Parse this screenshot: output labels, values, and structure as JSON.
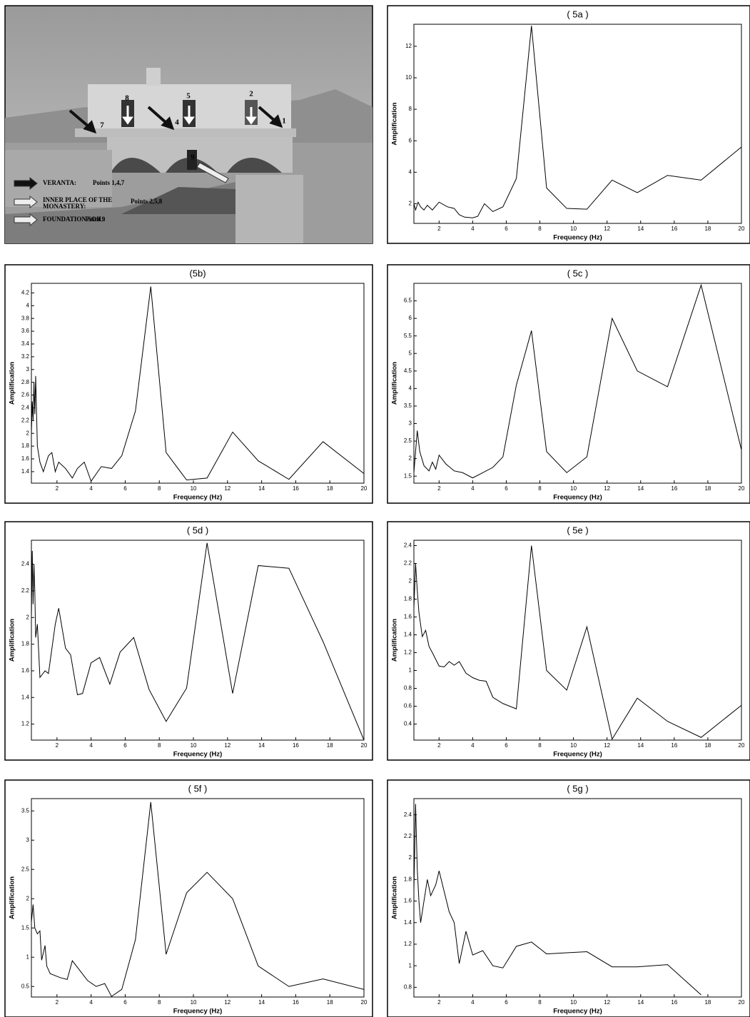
{
  "photo": {
    "point_labels": [
      "8",
      "5",
      "2",
      "7",
      "4",
      "1",
      "9"
    ],
    "legend": [
      {
        "lines": [
          "VERANTA:"
        ],
        "points": "Points 1,4,7"
      },
      {
        "lines": [
          "INNER PLACE OF THE",
          "MONASTERY:"
        ],
        "points": "Points 2,5,8"
      },
      {
        "lines": [
          "FOUNDATION SOIL:"
        ],
        "points": "Point 9"
      }
    ]
  },
  "chart_data": [
    {
      "type": "line",
      "title": "( 5a )",
      "x_label": "Frequency (Hz)",
      "y_label": "Amplification",
      "color": "#000000",
      "xlim": [
        0.5,
        20
      ],
      "ylim": [
        0.75,
        13.4
      ],
      "xticks": [
        2,
        4,
        6,
        8,
        10,
        12,
        14,
        16,
        18,
        20
      ],
      "yticks": [
        2,
        4,
        6,
        8,
        10,
        12
      ],
      "x": [
        0.5,
        0.6,
        0.75,
        0.9,
        1.1,
        1.3,
        1.6,
        2.0,
        2.5,
        2.9,
        3.2,
        3.5,
        4.0,
        4.3,
        4.7,
        5.2,
        5.8,
        6.6,
        7.5,
        8.4,
        9.6,
        10.8,
        12.3,
        13.8,
        15.6,
        17.6,
        20
      ],
      "values": [
        2.0,
        1.6,
        2.1,
        1.8,
        1.6,
        1.9,
        1.6,
        2.1,
        1.8,
        1.7,
        1.3,
        1.15,
        1.1,
        1.2,
        2.0,
        1.5,
        1.8,
        3.6,
        13.3,
        3.0,
        1.7,
        1.65,
        3.5,
        2.7,
        3.8,
        3.5,
        5.6
      ]
    },
    {
      "type": "line",
      "title": "(5b)",
      "x_label": "Frequency (Hz)",
      "y_label": "Amplification",
      "color": "#000000",
      "xlim": [
        0.5,
        20
      ],
      "ylim": [
        1.22,
        4.35
      ],
      "xticks": [
        2,
        4,
        6,
        8,
        10,
        12,
        14,
        16,
        18,
        20
      ],
      "yticks": [
        1.4,
        1.6,
        1.8,
        2,
        2.2,
        2.4,
        2.6,
        2.8,
        3,
        3.2,
        3.4,
        3.6,
        3.8,
        4,
        4.2
      ],
      "x": [
        0.5,
        0.55,
        0.6,
        0.65,
        0.7,
        0.75,
        0.85,
        1.0,
        1.2,
        1.5,
        1.7,
        1.9,
        2.1,
        2.5,
        2.9,
        3.2,
        3.6,
        4.0,
        4.6,
        5.2,
        5.8,
        6.6,
        7.5,
        8.4,
        9.6,
        10.8,
        12.3,
        13.8,
        15.6,
        17.6,
        20
      ],
      "values": [
        2.0,
        2.5,
        2.2,
        2.8,
        2.3,
        2.9,
        1.8,
        1.55,
        1.4,
        1.65,
        1.7,
        1.4,
        1.55,
        1.45,
        1.3,
        1.45,
        1.55,
        1.25,
        1.48,
        1.45,
        1.65,
        2.35,
        4.3,
        1.7,
        1.27,
        1.3,
        2.02,
        1.57,
        1.28,
        1.87,
        1.37
      ]
    },
    {
      "type": "line",
      "title": "( 5c )",
      "x_label": "Frequency (Hz)",
      "y_label": "Amplification",
      "color": "#000000",
      "xlim": [
        0.5,
        20
      ],
      "ylim": [
        1.3,
        7.0
      ],
      "xticks": [
        2,
        4,
        6,
        8,
        10,
        12,
        14,
        16,
        18,
        20
      ],
      "yticks": [
        1.5,
        2,
        2.5,
        3,
        3.5,
        4,
        4.5,
        5,
        5.5,
        6,
        6.5
      ],
      "x": [
        0.5,
        0.6,
        0.7,
        0.85,
        1.1,
        1.4,
        1.6,
        1.8,
        2.0,
        2.4,
        2.9,
        3.4,
        4.0,
        4.6,
        5.2,
        5.8,
        6.6,
        7.5,
        8.4,
        9.6,
        10.8,
        12.3,
        13.8,
        15.6,
        17.6,
        20
      ],
      "values": [
        1.6,
        2.2,
        2.8,
        2.2,
        1.8,
        1.65,
        1.9,
        1.7,
        2.1,
        1.85,
        1.65,
        1.6,
        1.45,
        1.6,
        1.75,
        2.05,
        4.1,
        5.65,
        2.2,
        1.6,
        2.05,
        6.0,
        4.5,
        4.05,
        6.95,
        2.25
      ]
    },
    {
      "type": "line",
      "title": "( 5d )",
      "x_label": "Frequency (Hz)",
      "y_label": "Amplification",
      "color": "#000000",
      "xlim": [
        0.5,
        20
      ],
      "ylim": [
        1.08,
        2.58
      ],
      "xticks": [
        2,
        4,
        6,
        8,
        10,
        12,
        14,
        16,
        18,
        20
      ],
      "yticks": [
        1.2,
        1.4,
        1.6,
        1.8,
        2,
        2.2,
        2.4
      ],
      "x": [
        0.5,
        0.55,
        0.6,
        0.65,
        0.7,
        0.75,
        0.85,
        1.0,
        1.3,
        1.5,
        1.9,
        2.1,
        2.5,
        2.8,
        3.2,
        3.5,
        4.0,
        4.5,
        5.1,
        5.7,
        6.5,
        7.4,
        8.4,
        9.6,
        10.8,
        12.3,
        13.8,
        15.6,
        17.6,
        20
      ],
      "values": [
        2.0,
        2.5,
        2.1,
        2.4,
        2.2,
        1.85,
        1.95,
        1.55,
        1.6,
        1.58,
        1.95,
        2.07,
        1.77,
        1.72,
        1.42,
        1.43,
        1.66,
        1.7,
        1.5,
        1.74,
        1.85,
        1.46,
        1.22,
        1.47,
        2.56,
        1.43,
        2.39,
        2.37,
        1.82,
        1.08
      ]
    },
    {
      "type": "line",
      "title": "( 5e )",
      "x_label": "Frequency (Hz)",
      "y_label": "Amplification",
      "color": "#000000",
      "xlim": [
        0.5,
        20
      ],
      "ylim": [
        0.22,
        2.46
      ],
      "xticks": [
        2,
        4,
        6,
        8,
        10,
        12,
        14,
        16,
        18,
        20
      ],
      "yticks": [
        0.4,
        0.6,
        0.8,
        1,
        1.2,
        1.4,
        1.6,
        1.8,
        2,
        2.2,
        2.4
      ],
      "x": [
        0.5,
        0.6,
        0.7,
        0.8,
        1.0,
        1.2,
        1.4,
        1.6,
        2.0,
        2.3,
        2.6,
        2.9,
        3.2,
        3.6,
        4.0,
        4.4,
        4.8,
        5.2,
        5.8,
        6.6,
        7.5,
        8.4,
        9.6,
        10.8,
        12.3,
        13.8,
        15.6,
        17.6,
        20
      ],
      "values": [
        1.7,
        2.2,
        1.9,
        1.65,
        1.38,
        1.45,
        1.27,
        1.2,
        1.05,
        1.04,
        1.1,
        1.06,
        1.1,
        0.97,
        0.92,
        0.89,
        0.88,
        0.7,
        0.63,
        0.57,
        2.4,
        1.0,
        0.78,
        1.49,
        0.23,
        0.69,
        0.43,
        0.25,
        0.61
      ]
    },
    {
      "type": "line",
      "title": "( 5f )",
      "x_label": "Frequency (Hz)",
      "y_label": "Amplification",
      "color": "#000000",
      "xlim": [
        0.5,
        20
      ],
      "ylim": [
        0.32,
        3.71
      ],
      "xticks": [
        2,
        4,
        6,
        8,
        10,
        12,
        14,
        16,
        18,
        20
      ],
      "yticks": [
        0.5,
        1,
        1.5,
        2,
        2.5,
        3,
        3.5
      ],
      "x": [
        0.5,
        0.6,
        0.7,
        0.85,
        1.0,
        1.1,
        1.3,
        1.4,
        1.6,
        2.2,
        2.6,
        2.9,
        3.4,
        3.8,
        4.3,
        4.8,
        5.2,
        5.8,
        6.6,
        7.5,
        8.4,
        9.6,
        10.8,
        12.3,
        13.8,
        15.6,
        17.6,
        20
      ],
      "values": [
        1.6,
        1.9,
        1.5,
        1.4,
        1.45,
        0.95,
        1.2,
        0.85,
        0.72,
        0.65,
        0.62,
        0.94,
        0.75,
        0.6,
        0.5,
        0.55,
        0.33,
        0.45,
        1.3,
        3.65,
        1.05,
        2.1,
        2.45,
        2.0,
        0.85,
        0.5,
        0.63,
        0.45
      ]
    },
    {
      "type": "line",
      "title": "( 5g )",
      "x_label": "Frequency (Hz)",
      "y_label": "Amplification",
      "color": "#000000",
      "xlim": [
        0.5,
        20
      ],
      "ylim": [
        0.71,
        2.55
      ],
      "xticks": [
        2,
        4,
        6,
        8,
        10,
        12,
        14,
        16,
        18,
        20
      ],
      "yticks": [
        0.8,
        1,
        1.2,
        1.4,
        1.6,
        1.8,
        2,
        2.2,
        2.4
      ],
      "x": [
        0.5,
        0.6,
        0.7,
        0.8,
        0.9,
        1.3,
        1.5,
        1.8,
        2.0,
        2.6,
        2.9,
        3.2,
        3.6,
        4.0,
        4.6,
        5.2,
        5.8,
        6.6,
        7.5,
        8.4,
        9.6,
        10.8,
        12.3,
        13.8,
        15.6,
        17.6
      ],
      "values": [
        1.7,
        2.5,
        1.9,
        1.6,
        1.4,
        1.8,
        1.65,
        1.75,
        1.88,
        1.5,
        1.4,
        1.02,
        1.32,
        1.1,
        1.14,
        1.0,
        0.98,
        1.18,
        1.22,
        1.11,
        1.12,
        1.13,
        0.99,
        0.99,
        1.01,
        0.73
      ]
    }
  ]
}
